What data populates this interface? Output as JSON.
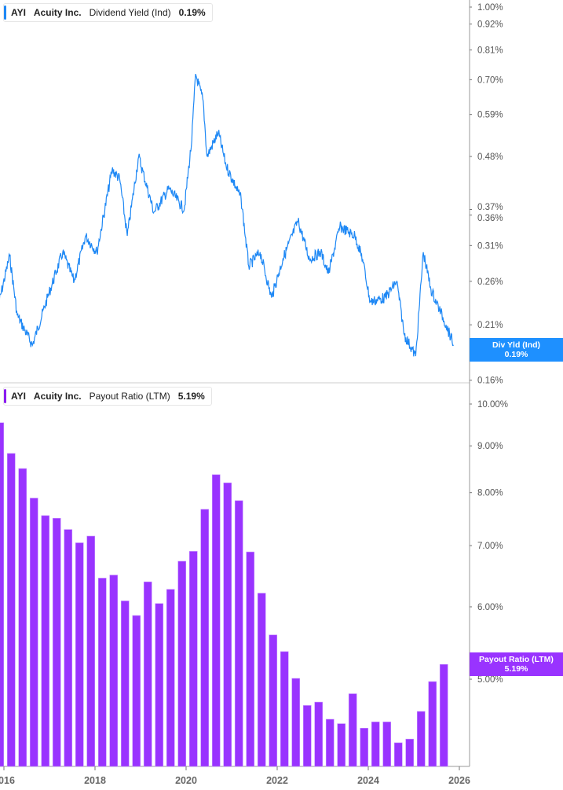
{
  "top_panel": {
    "ticker": "AYI",
    "company": "Acuity Inc.",
    "metric": "Dividend Yield (Ind)",
    "value": "0.19%",
    "flag_label": "Div Yld (Ind)",
    "flag_value": "0.19%"
  },
  "bottom_panel": {
    "ticker": "AYI",
    "company": "Acuity Inc.",
    "metric": "Payout Ratio (LTM)",
    "value": "5.19%",
    "flag_label": "Payout Ratio (LTM)",
    "flag_value": "5.19%"
  },
  "chart_data": [
    {
      "type": "line",
      "series": [
        {
          "name": "Dividend Yield (Ind)",
          "color": "#1e88f5",
          "points": [
            [
              "2015-11",
              0.23
            ],
            [
              "2016-02",
              0.295
            ],
            [
              "2016-04",
              0.22
            ],
            [
              "2016-08",
              0.19
            ],
            [
              "2016-12",
              0.24
            ],
            [
              "2017-04",
              0.3
            ],
            [
              "2017-07",
              0.26
            ],
            [
              "2017-10",
              0.325
            ],
            [
              "2018-01",
              0.3
            ],
            [
              "2018-05",
              0.45
            ],
            [
              "2018-07",
              0.43
            ],
            [
              "2018-09",
              0.325
            ],
            [
              "2018-12",
              0.48
            ],
            [
              "2019-04",
              0.365
            ],
            [
              "2019-08",
              0.41
            ],
            [
              "2019-12",
              0.37
            ],
            [
              "2020-02",
              0.52
            ],
            [
              "2020-03",
              0.72
            ],
            [
              "2020-05",
              0.63
            ],
            [
              "2020-06",
              0.48
            ],
            [
              "2020-09",
              0.54
            ],
            [
              "2020-11",
              0.46
            ],
            [
              "2021-03",
              0.39
            ],
            [
              "2021-05",
              0.28
            ],
            [
              "2021-08",
              0.3
            ],
            [
              "2021-11",
              0.24
            ],
            [
              "2022-02",
              0.29
            ],
            [
              "2022-06",
              0.35
            ],
            [
              "2022-09",
              0.29
            ],
            [
              "2022-12",
              0.3
            ],
            [
              "2023-02",
              0.27
            ],
            [
              "2023-05",
              0.34
            ],
            [
              "2023-09",
              0.325
            ],
            [
              "2023-11",
              0.29
            ],
            [
              "2024-01",
              0.235
            ],
            [
              "2024-05",
              0.24
            ],
            [
              "2024-08",
              0.26
            ],
            [
              "2024-10",
              0.2
            ],
            [
              "2025-01",
              0.18
            ],
            [
              "2025-03",
              0.3
            ],
            [
              "2025-05",
              0.25
            ],
            [
              "2025-09",
              0.21
            ],
            [
              "2025-11",
              0.19
            ]
          ]
        }
      ],
      "y_scale": "log",
      "ylim": [
        0.155,
        1.02
      ],
      "y_ticks": [
        "1.00%",
        "0.92%",
        "0.81%",
        "0.70%",
        "0.59%",
        "0.48%",
        "0.37%",
        "0.36%",
        "0.31%",
        "0.26%",
        "0.21%",
        "0.16%"
      ],
      "y_tick_values": [
        1.0,
        0.92,
        0.81,
        0.7,
        0.59,
        0.48,
        0.37,
        0.36,
        0.31,
        0.26,
        0.21,
        0.16
      ],
      "grid": false
    },
    {
      "type": "bar",
      "series": [
        {
          "name": "Payout Ratio (LTM)",
          "color": "#9933ff",
          "categories": [
            "2015-11",
            "2016-02",
            "2016-05",
            "2016-08",
            "2016-11",
            "2017-02",
            "2017-05",
            "2017-08",
            "2017-11",
            "2018-02",
            "2018-05",
            "2018-08",
            "2018-11",
            "2019-02",
            "2019-05",
            "2019-08",
            "2019-11",
            "2020-02",
            "2020-05",
            "2020-08",
            "2020-11",
            "2021-02",
            "2021-05",
            "2021-08",
            "2021-11",
            "2022-02",
            "2022-05",
            "2022-08",
            "2022-11",
            "2023-02",
            "2023-05",
            "2023-08",
            "2023-11",
            "2024-02",
            "2024-05",
            "2024-08",
            "2024-11",
            "2025-02",
            "2025-05",
            "2025-08"
          ],
          "values": [
            9.54,
            8.83,
            8.5,
            7.89,
            7.55,
            7.5,
            7.29,
            7.05,
            7.17,
            6.45,
            6.5,
            6.09,
            5.87,
            6.39,
            6.05,
            6.27,
            6.73,
            6.9,
            7.67,
            8.37,
            8.2,
            7.84,
            6.89,
            6.21,
            5.59,
            5.36,
            5.01,
            4.68,
            4.72,
            4.52,
            4.47,
            4.82,
            4.42,
            4.49,
            4.49,
            4.26,
            4.3,
            4.61,
            4.97,
            5.19
          ]
        }
      ],
      "y_scale": "log",
      "ylim": [
        4.01,
        10.0
      ],
      "y_ticks": [
        "10.00%",
        "9.00%",
        "8.00%",
        "7.00%",
        "6.00%",
        "5.00%"
      ],
      "y_tick_values": [
        10,
        9,
        8,
        7,
        6,
        5
      ],
      "grid": false
    }
  ],
  "x_axis": {
    "tick_labels": [
      "2016",
      "2018",
      "2020",
      "2022",
      "2024",
      "2026"
    ],
    "tick_values": [
      2016,
      2018,
      2020,
      2022,
      2024,
      2026
    ]
  }
}
